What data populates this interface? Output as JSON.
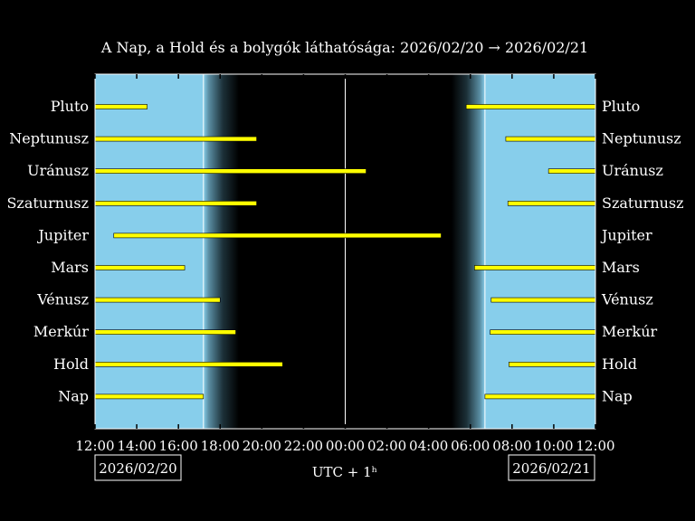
{
  "chart_data": {
    "type": "timeline",
    "title": "A Nap, a Hold és a bolygók láthatósága: 2026/02/20 → 2026/02/21",
    "xlabel": "UTC + 1ʰ",
    "date_left": "2026/02/20",
    "date_right": "2026/02/21",
    "x_range_hours": [
      12,
      36
    ],
    "x_ticks": [
      "12:00",
      "14:00",
      "16:00",
      "18:00",
      "20:00",
      "22:00",
      "00:00",
      "02:00",
      "04:00",
      "06:00",
      "08:00",
      "10:00",
      "12:00"
    ],
    "midnight_hour": 24,
    "sunset_hour": 17.2,
    "dusk_end_hour": 18.9,
    "dawn_start_hour": 29.1,
    "sunrise_hour": 30.7,
    "colors": {
      "day": "#87CEEB",
      "night": "#000000",
      "bar": "#FFFF00",
      "frame": "#FFFFFF"
    },
    "bodies": [
      {
        "name": "Pluto",
        "left_end": 14.5,
        "right_start": 29.8
      },
      {
        "name": "Neptunusz",
        "left_end": 19.75,
        "right_start": 31.7
      },
      {
        "name": "Uránusz",
        "left_end": 25.0,
        "right_start": 33.75
      },
      {
        "name": "Szaturnusz",
        "left_end": 19.75,
        "right_start": 31.8
      },
      {
        "name": "Jupiter",
        "left_start": 12.9,
        "left_end": 28.6
      },
      {
        "name": "Mars",
        "left_end": 16.3,
        "right_start": 30.2
      },
      {
        "name": "Vénusz",
        "left_end": 18.0,
        "right_start": 31.0
      },
      {
        "name": "Merkúr",
        "left_end": 18.75,
        "right_start": 30.95
      },
      {
        "name": "Hold",
        "left_end": 21.0,
        "right_start": 31.85
      },
      {
        "name": "Nap",
        "left_end": 17.2,
        "right_start": 30.7
      }
    ]
  }
}
